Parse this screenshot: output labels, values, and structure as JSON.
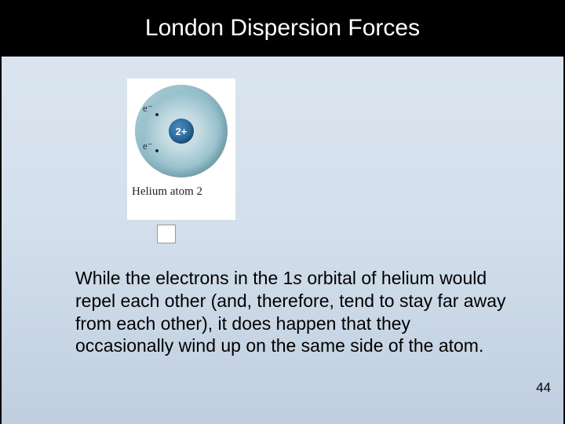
{
  "slide": {
    "title": "London Dispersion Forces",
    "page_number": "44",
    "background_gradient": [
      "#dce6f0",
      "#d4e0ec",
      "#c0cedf"
    ],
    "title_bar_bg": "#000000",
    "title_text_color": "#ffffff"
  },
  "diagram": {
    "caption": "Helium atom 2",
    "nucleus_label": "2+",
    "electron_labels": [
      "e⁻",
      "e⁻"
    ],
    "atom_colors": {
      "cloud_outer": "#4f8fa2",
      "cloud_inner": "#d6e6ea",
      "nucleus_outer": "#1d4e75",
      "nucleus_inner": "#4a8bbd"
    }
  },
  "body": {
    "text_before_italic": "While the electrons in the 1",
    "italic": "s",
    "text_after_italic": " orbital of helium would repel each other (and, therefore, tend to stay far away from each other), it does happen that they occasionally wind up on the same side of the atom."
  }
}
